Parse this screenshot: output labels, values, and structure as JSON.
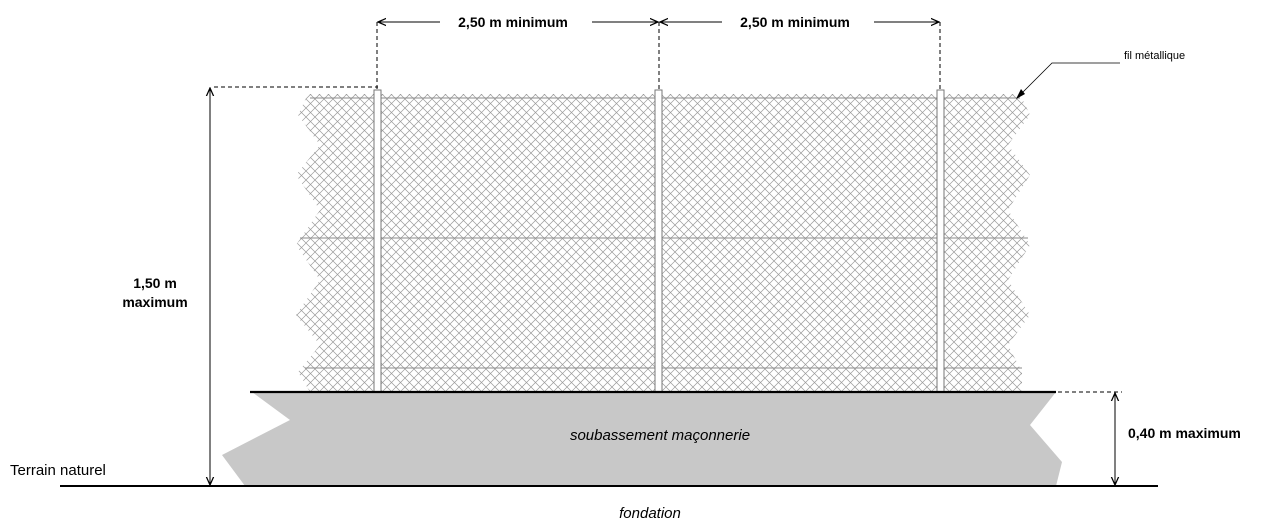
{
  "labels": {
    "spacing_left": "2,50 m minimum",
    "spacing_right": "2,50 m minimum",
    "wire": "fil métallique",
    "height_line1": "1,50 m",
    "height_line2": "maximum",
    "base": "soubassement maçonnerie",
    "base_height": "0,40 m maximum",
    "ground": "Terrain naturel",
    "foundation": "fondation"
  },
  "colors": {
    "masonry": "#c8c8c8",
    "mesh": "#9a9a9a",
    "line": "#000000"
  }
}
